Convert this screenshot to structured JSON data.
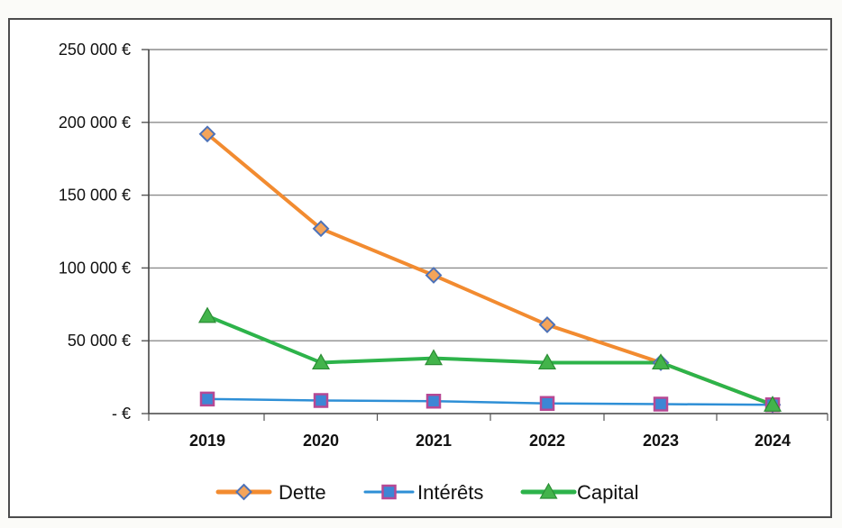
{
  "chart_data": {
    "type": "line",
    "title": "",
    "xlabel": "",
    "ylabel": "",
    "categories": [
      "2019",
      "2020",
      "2021",
      "2022",
      "2023",
      "2024"
    ],
    "ylim": [
      0,
      250000
    ],
    "y_ticks": [
      {
        "value": 250000,
        "label": "250 000 €"
      },
      {
        "value": 200000,
        "label": "200 000 €"
      },
      {
        "value": 150000,
        "label": "150 000 €"
      },
      {
        "value": 100000,
        "label": "100 000 €"
      },
      {
        "value": 50000,
        "label": "50 000 €"
      },
      {
        "value": 0,
        "label": "-   €"
      }
    ],
    "grid": "horizontal",
    "legend_position": "bottom",
    "series": [
      {
        "name": "Dette",
        "values": [
          192000,
          127000,
          95000,
          61000,
          35000,
          6000
        ],
        "color": "#f28b30",
        "marker": "diamond"
      },
      {
        "name": "Intérêts",
        "values": [
          10000,
          9000,
          8500,
          7000,
          6500,
          6000
        ],
        "color": "#2e8fd6",
        "marker": "square"
      },
      {
        "name": "Capital",
        "values": [
          67000,
          35000,
          38000,
          35000,
          35000,
          6000
        ],
        "color": "#2db34a",
        "marker": "triangle"
      }
    ]
  }
}
